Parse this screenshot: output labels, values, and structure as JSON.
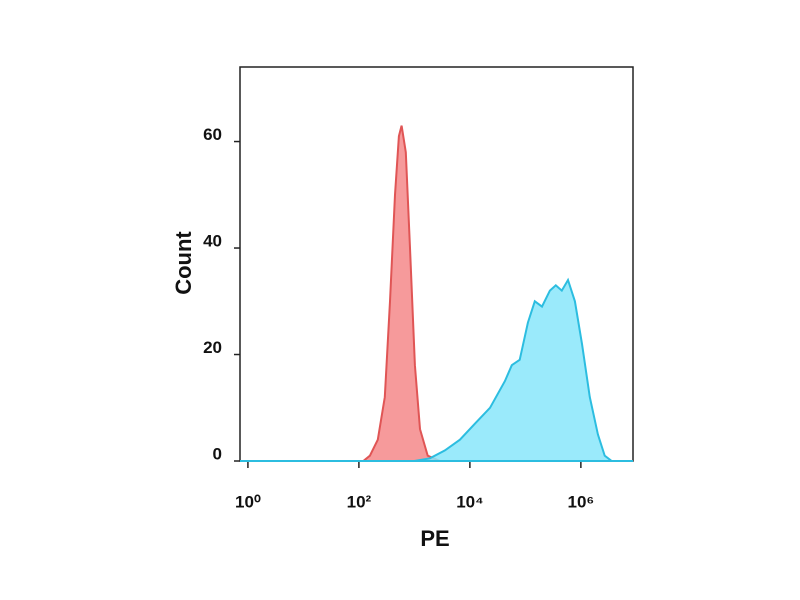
{
  "chart_data": {
    "type": "area",
    "x_label": "PE",
    "y_label": "Count",
    "xscale": "log",
    "xlim": [
      0.72,
      8700000
    ],
    "ylim": [
      0,
      74
    ],
    "xticks": [
      {
        "value": 1,
        "label": "10⁰"
      },
      {
        "value": 100,
        "label": "10²"
      },
      {
        "value": 10000,
        "label": "10⁴"
      },
      {
        "value": 1000000,
        "label": "10⁶"
      }
    ],
    "yticks": [
      0,
      20,
      40,
      60
    ],
    "series": [
      {
        "color": "#e05555",
        "fill": "#f4888a",
        "x": [
          0.72,
          100,
          120,
          158,
          219,
          293,
          363,
          447,
          525,
          589,
          700,
          832,
          1020,
          1260,
          1740,
          2880,
          8700000
        ],
        "values": [
          0,
          0,
          0,
          1,
          4,
          12,
          30,
          50,
          61,
          63,
          58,
          40,
          18,
          6,
          1,
          0,
          0
        ]
      },
      {
        "color": "#2cbde0",
        "fill": "#88e6fa",
        "x": [
          0.72,
          1000,
          1900,
          3550,
          6600,
          12300,
          23000,
          42700,
          57000,
          79000,
          111000,
          148000,
          199000,
          277000,
          354000,
          454000,
          587000,
          780000,
          1050000,
          1450000,
          2030000,
          2690000,
          3600000,
          8700000
        ],
        "values": [
          0,
          0,
          0.5,
          2,
          4,
          7,
          10,
          15,
          18,
          19,
          26,
          30,
          29,
          32,
          33,
          32,
          34,
          30,
          22,
          12,
          5,
          1,
          0,
          0
        ]
      }
    ]
  }
}
